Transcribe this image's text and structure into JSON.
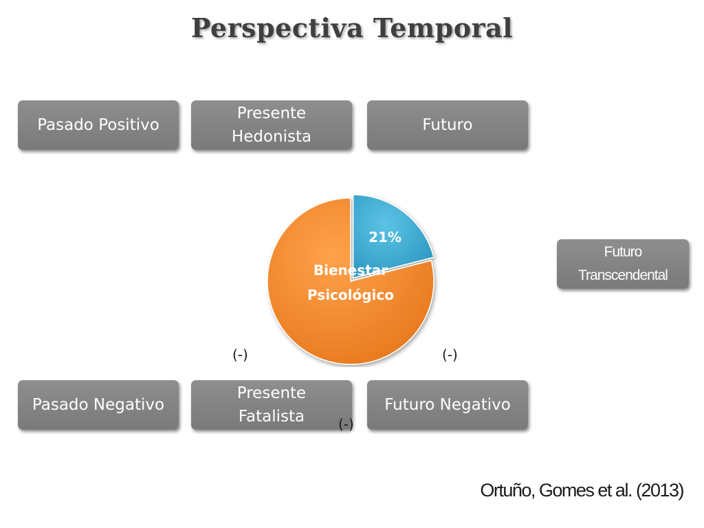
{
  "title": "Perspectiva Temporal",
  "boxes": {
    "pasado_positivo": "Pasado Positivo",
    "presente_hedonista": [
      "Presente",
      "Hedonista"
    ],
    "futuro": "Futuro",
    "futuro_transcendental": [
      "Futuro",
      "Transcendental"
    ],
    "pasado_negativo": "Pasado Negativo",
    "presente_fatalista": [
      "Presente",
      "Fatalista"
    ],
    "futuro_negativo": "Futuro Negativo"
  },
  "pie": {
    "center_label": [
      "Bienestar",
      "Psicológico"
    ],
    "slice_label": "21%",
    "colors": {
      "main": "#f28a2e",
      "slice": "#3aaed6"
    }
  },
  "chart_data": {
    "type": "pie",
    "slices": [
      {
        "label": "21%",
        "value": 21
      },
      {
        "label": "",
        "value": 79
      }
    ]
  },
  "minus_marks": {
    "left": "(-)",
    "right": "(-)",
    "bottom": "(-)"
  },
  "citation": "Ortuño, Gomes et al. (2013)"
}
